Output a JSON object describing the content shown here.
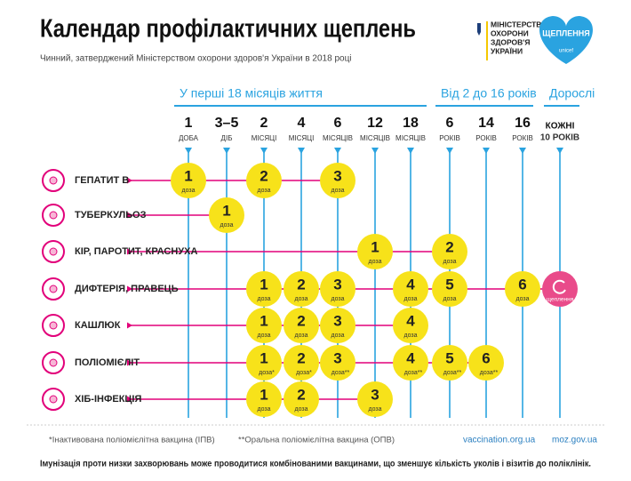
{
  "header": {
    "title": "Календар профілактичних щеплень",
    "subtitle": "Чинний, затверджений Міністерством охорони здоров'я України в 2018 році",
    "ministry": [
      "МІНІСТЕРСТВО",
      "ОХОРОНИ",
      "ЗДОРОВ'Я",
      "УКРАЇНИ"
    ],
    "campaign": "ЩЕПЛЕННЯ",
    "partner": "unicef"
  },
  "groups": [
    "У перші 18 місяців життя",
    "Від 2 до 16 років",
    "Дорослі"
  ],
  "columns": [
    {
      "number": "1",
      "unit": "ДОБА"
    },
    {
      "number": "3–5",
      "unit": "ДІБ"
    },
    {
      "number": "2",
      "unit": "МІСЯЦІ"
    },
    {
      "number": "4",
      "unit": "МІСЯЦІ"
    },
    {
      "number": "6",
      "unit": "МІСЯЦІВ"
    },
    {
      "number": "12",
      "unit": "МІСЯЦІВ"
    },
    {
      "number": "18",
      "unit": "МІСЯЦІВ"
    },
    {
      "number": "6",
      "unit": "РОКІВ"
    },
    {
      "number": "14",
      "unit": "РОКІВ"
    },
    {
      "number": "16",
      "unit": "РОКІВ"
    },
    {
      "number": "КОЖНІ",
      "unit": "10 РОКІВ"
    }
  ],
  "rows": [
    {
      "name": "ГЕПАТИТ В",
      "doses": [
        {
          "number": "1",
          "label": "доза"
        },
        null,
        {
          "number": "2",
          "label": "доза"
        },
        null,
        {
          "number": "3",
          "label": "доза"
        },
        null,
        null,
        null,
        null,
        null,
        null
      ]
    },
    {
      "name": "ТУБЕРКУЛЬОЗ",
      "doses": [
        null,
        {
          "number": "1",
          "label": "доза"
        },
        null,
        null,
        null,
        null,
        null,
        null,
        null,
        null,
        null
      ]
    },
    {
      "name": "КІР, ПАРОТИТ, КРАСНУХА",
      "doses": [
        null,
        null,
        null,
        null,
        null,
        {
          "number": "1",
          "label": "доза"
        },
        null,
        {
          "number": "2",
          "label": "доза"
        },
        null,
        null,
        null
      ]
    },
    {
      "name": "ДИФТЕРІЯ, ПРАВЕЦЬ",
      "doses": [
        null,
        null,
        {
          "number": "1",
          "label": "доза"
        },
        {
          "number": "2",
          "label": "доза"
        },
        {
          "number": "3",
          "label": "доза"
        },
        null,
        {
          "number": "4",
          "label": "доза"
        },
        {
          "number": "5",
          "label": "доза"
        },
        null,
        {
          "number": "6",
          "label": "доза"
        },
        {
          "label": "щеплення"
        }
      ]
    },
    {
      "name": "КАШЛЮК",
      "doses": [
        null,
        null,
        {
          "number": "1",
          "label": "доза"
        },
        {
          "number": "2",
          "label": "доза"
        },
        {
          "number": "3",
          "label": "доза"
        },
        null,
        {
          "number": "4",
          "label": "доза"
        },
        null,
        null,
        null,
        null
      ]
    },
    {
      "name": "ПОЛІОМІЄЛІТ",
      "doses": [
        null,
        null,
        {
          "number": "1",
          "label": "доза*"
        },
        {
          "number": "2",
          "label": "доза*"
        },
        {
          "number": "3",
          "label": "доза**"
        },
        null,
        {
          "number": "4",
          "label": "доза**"
        },
        {
          "number": "5",
          "label": "доза**"
        },
        {
          "number": "6",
          "label": "доза**"
        },
        null,
        null
      ]
    },
    {
      "name": "ХІБ-ІНФЕКЦІЯ",
      "doses": [
        null,
        null,
        {
          "number": "1",
          "label": "доза"
        },
        {
          "number": "2",
          "label": "доза"
        },
        null,
        {
          "number": "3",
          "label": "доза"
        },
        null,
        null,
        null,
        null,
        null
      ]
    }
  ],
  "footer": {
    "notes": [
      "*Інактивована поліомієлітна вакцина (ІПВ)",
      "**Оральна поліомієлітна вакцина (ОПВ)"
    ],
    "links": [
      "vaccination.org.ua",
      "moz.gov.ua"
    ],
    "bottom": "Імунізація проти низки захворювань може проводитися комбінованими вакцинами, що зменшує кількість уколів і візитів до поліклінік."
  }
}
